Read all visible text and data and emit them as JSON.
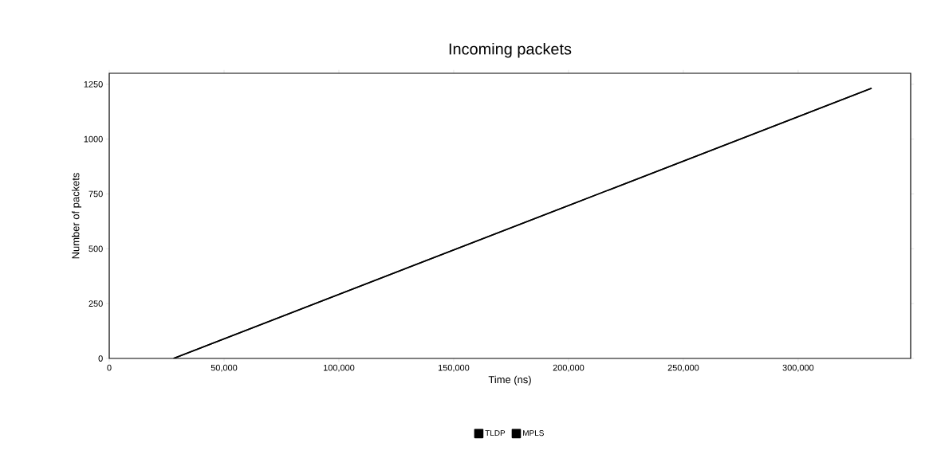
{
  "chart_data": {
    "type": "line",
    "title": "Incoming packets",
    "xlabel": "Time (ns)",
    "ylabel": "Number of packets",
    "x": [
      28000,
      332000
    ],
    "series": [
      {
        "name": "TLDP",
        "color": "#000000",
        "values": [
          0,
          1232
        ]
      },
      {
        "name": "MPLS",
        "color": "#000000",
        "values": [
          0,
          1232
        ]
      }
    ],
    "xlim": [
      0,
      349000
    ],
    "ylim": [
      0,
      1300
    ],
    "xticks": [
      0,
      {
        "value": 50000,
        "label": "50,000"
      },
      {
        "value": 100000,
        "label": "100,000"
      },
      {
        "value": 150000,
        "label": "150,000"
      },
      {
        "value": 200000,
        "label": "200,000"
      },
      {
        "value": 250000,
        "label": "250,000"
      },
      {
        "value": 300000,
        "label": "300,000"
      }
    ],
    "yticks": [
      0,
      250,
      500,
      750,
      1000,
      1250
    ],
    "legend": "bottom",
    "grid": false,
    "marker": "none",
    "line_style": "solid"
  }
}
